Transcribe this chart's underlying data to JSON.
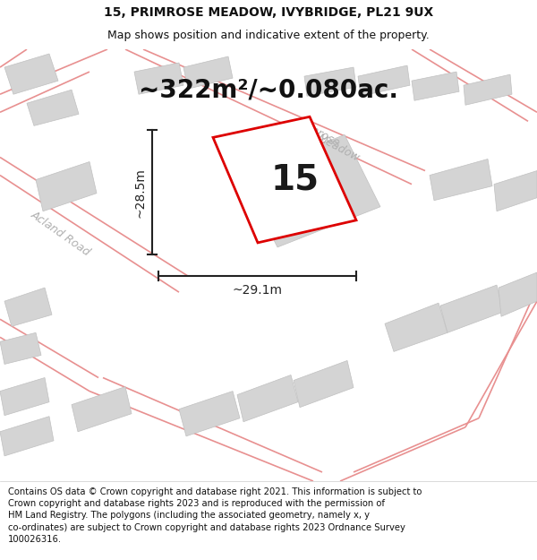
{
  "title": "15, PRIMROSE MEADOW, IVYBRIDGE, PL21 9UX",
  "subtitle": "Map shows position and indicative extent of the property.",
  "footer": "Contains OS data © Crown copyright and database right 2021. This information is subject to\nCrown copyright and database rights 2023 and is reproduced with the permission of\nHM Land Registry. The polygons (including the associated geometry, namely x, y\nco-ordinates) are subject to Crown copyright and database rights 2023 Ordnance Survey\n100026316.",
  "area_label": "~322m²/~0.080ac.",
  "plot_number": "15",
  "dim_width": "~29.1m",
  "dim_height": "~28.5m",
  "map_bg": "#f0f0f0",
  "plot_fill": "#ffffff",
  "plot_outline": "#dd0000",
  "building_fill": "#d4d4d4",
  "building_outline": "#c0c0c0",
  "road_line_color": "#e89090",
  "dim_line_color": "#222222",
  "street_label_color": "#b0b0b0",
  "title_fontsize": 10,
  "subtitle_fontsize": 9,
  "footer_fontsize": 7.2,
  "area_fontsize": 20,
  "plot_num_fontsize": 28,
  "dim_fontsize": 10,
  "street_fontsize": 9
}
